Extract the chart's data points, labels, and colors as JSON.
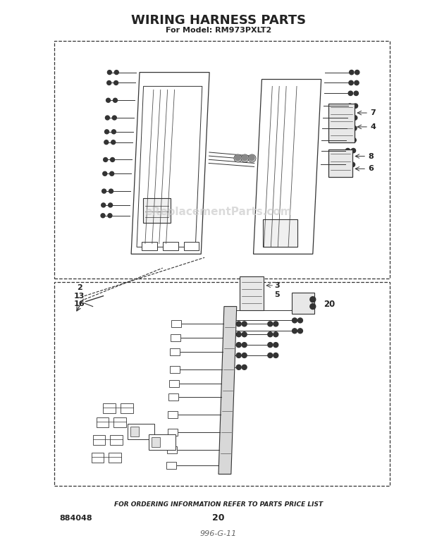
{
  "title": "WIRING HARNESS PARTS",
  "subtitle": "For Model: RM973PXLT2",
  "footer_text": "FOR ORDERING INFORMATION REFER TO PARTS PRICE LIST",
  "part_number_left": "884048",
  "page_number": "20",
  "handwritten": "996-G-11",
  "bg_color": "#ffffff",
  "line_color": "#333333",
  "label_color": "#222222",
  "watermark": "eReplacementParts.com",
  "gray": "#888888",
  "lightgray": "#bbbbbb"
}
